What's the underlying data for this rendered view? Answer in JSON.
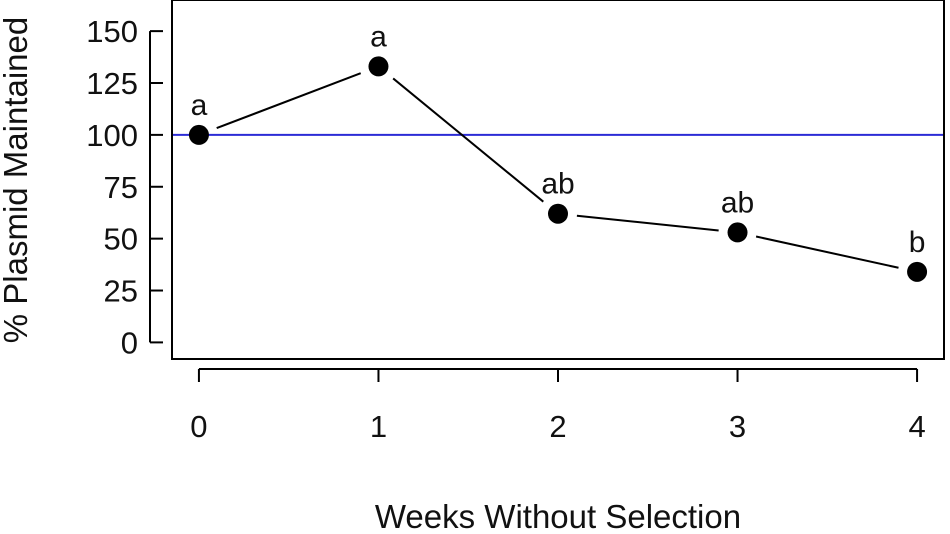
{
  "chart_data": {
    "type": "scatter",
    "xlabel": "Weeks Without Selection",
    "ylabel": "% Plasmid Maintained",
    "x": [
      0,
      1,
      2,
      3,
      4
    ],
    "y": [
      100,
      133,
      62,
      53,
      34
    ],
    "point_labels": [
      "a",
      "a",
      "ab",
      "ab",
      "b"
    ],
    "connected": true,
    "xlim": [
      -0.15,
      4.15
    ],
    "ylim": [
      -8,
      165
    ],
    "x_ticks": [
      0,
      1,
      2,
      3,
      4
    ],
    "y_ticks": [
      0,
      25,
      50,
      75,
      100,
      125,
      150
    ],
    "reference_line": {
      "y": 100,
      "color": "#2b2bd6"
    },
    "line_color": "#000000",
    "marker_color": "#000000",
    "grid": false,
    "legend": "none"
  }
}
